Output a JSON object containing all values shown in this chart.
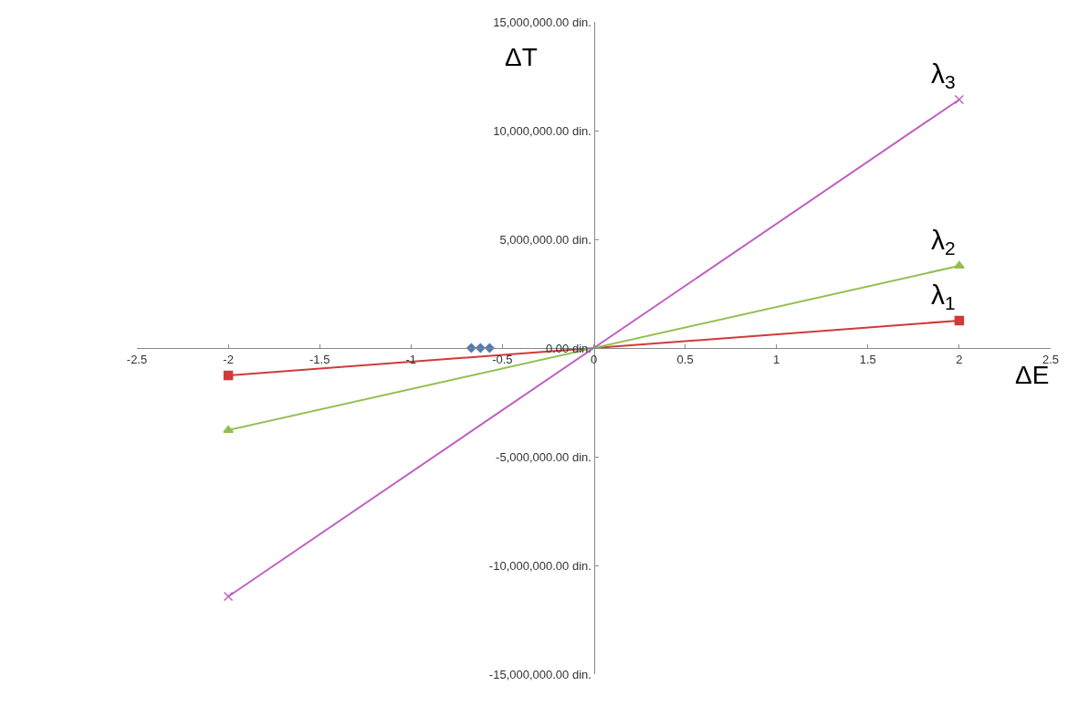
{
  "chart_data": {
    "type": "line",
    "xlabel": "ΔE",
    "ylabel": "ΔT",
    "xlim": [
      -2.5,
      2.5
    ],
    "xticks": [
      -2.5,
      -2,
      -1.5,
      -1,
      -0.5,
      0,
      0.5,
      1,
      1.5,
      2,
      2.5
    ],
    "ylim": [
      -15000000,
      15000000
    ],
    "yticks": [
      {
        "value": -15000000,
        "label": "-15,000,000.00 din."
      },
      {
        "value": -10000000,
        "label": "-10,000,000.00 din."
      },
      {
        "value": -5000000,
        "label": "-5,000,000.00 din."
      },
      {
        "value": 0,
        "label": "0.00 din."
      },
      {
        "value": 5000000,
        "label": "5,000,000.00 din."
      },
      {
        "value": 10000000,
        "label": "10,000,000.00 din."
      },
      {
        "value": 15000000,
        "label": "15,000,000.00 din."
      }
    ],
    "legend": false,
    "series": [
      {
        "name": "λ$_{1}$",
        "color": "#d03a3a",
        "marker": "square",
        "x": [
          -2,
          2
        ],
        "values": [
          -1260000,
          1260000
        ]
      },
      {
        "name": "λ$_{2}$",
        "color": "#92c050",
        "marker": "triangle",
        "x": [
          -2,
          2
        ],
        "values": [
          -3780000,
          3780000
        ]
      },
      {
        "name": "λ$_{3}$",
        "color": "#c060c0",
        "marker": "cross",
        "x": [
          -2,
          2
        ],
        "values": [
          -11430000,
          11430000
        ]
      },
      {
        "type": "scatter",
        "color": "#4a7ebb",
        "marker": "diamond",
        "x": [
          -0.67,
          -0.62,
          -0.57
        ],
        "values": [
          0,
          0,
          0
        ]
      }
    ]
  }
}
